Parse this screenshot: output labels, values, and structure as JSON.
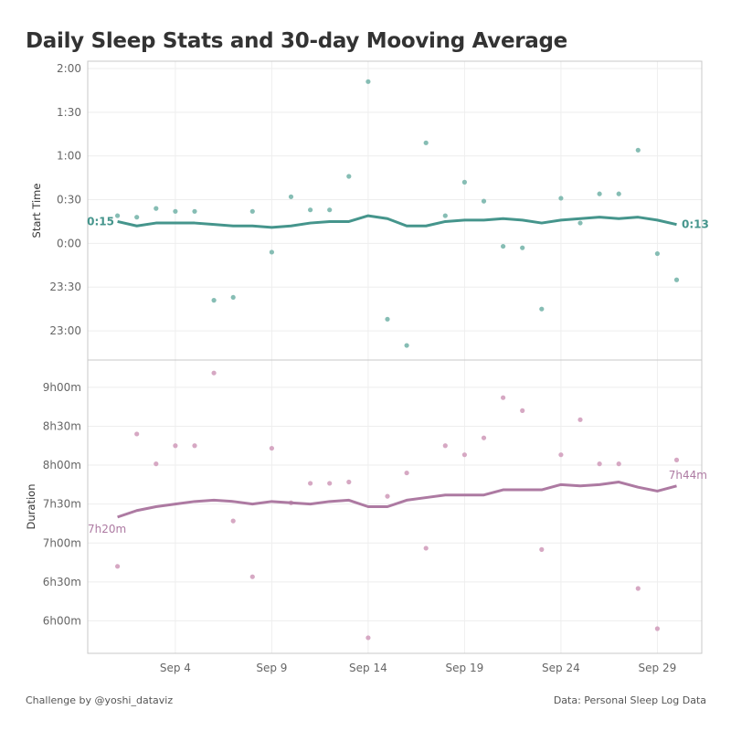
{
  "title": "Daily Sleep Stats and 30-day Mooving Average",
  "footer": {
    "credit": "Challenge by @yoshi_dataviz",
    "source": "Data: Personal Sleep Log Data"
  },
  "colors": {
    "start_line": "#45958c",
    "start_points": "#86bdb4",
    "duration_line": "#ad7aa2",
    "duration_points": "#d6a8c3",
    "grid": "#eeeeee"
  },
  "chart_data": [
    {
      "type": "line+scatter",
      "ylabel": "Start Time",
      "yticks": [
        "2:00",
        "1:30",
        "1:00",
        "0:30",
        "0:00",
        "23:30",
        "23:00"
      ],
      "ylim": [
        "22:40",
        "2:05"
      ],
      "grid": true,
      "x": [
        "Sep 1",
        "Sep 2",
        "Sep 3",
        "Sep 4",
        "Sep 5",
        "Sep 6",
        "Sep 7",
        "Sep 8",
        "Sep 9",
        "Sep 10",
        "Sep 11",
        "Sep 12",
        "Sep 13",
        "Sep 14",
        "Sep 15",
        "Sep 16",
        "Sep 17",
        "Sep 18",
        "Sep 19",
        "Sep 20",
        "Sep 21",
        "Sep 22",
        "Sep 23",
        "Sep 24",
        "Sep 25",
        "Sep 26",
        "Sep 27",
        "Sep 28",
        "Sep 29",
        "Sep 30"
      ],
      "daily": [
        "0:19",
        "0:18",
        "0:24",
        "0:22",
        "0:22",
        "23:21",
        "23:23",
        "0:22",
        "23:54",
        "0:32",
        "0:23",
        "0:23",
        "0:46",
        "1:51",
        "23:08",
        "22:50",
        "1:09",
        "0:19",
        "0:42",
        "0:29",
        "23:58",
        "23:57",
        "23:15",
        "0:31",
        "0:14",
        "0:34",
        "0:34",
        "1:04",
        "23:53",
        "23:35"
      ],
      "moving_average": [
        "0:15",
        "0:12",
        "0:14",
        "0:14",
        "0:14",
        "0:13",
        "0:12",
        "0:12",
        "0:11",
        "0:12",
        "0:14",
        "0:15",
        "0:15",
        "0:19",
        "0:17",
        "0:12",
        "0:12",
        "0:15",
        "0:16",
        "0:16",
        "0:17",
        "0:16",
        "0:14",
        "0:16",
        "0:17",
        "0:18",
        "0:17",
        "0:18",
        "0:16",
        "0:13"
      ],
      "labels": {
        "first": "0:15",
        "last": "0:13"
      }
    },
    {
      "type": "line+scatter",
      "ylabel": "Duration",
      "yticks": [
        "9h00m",
        "8h30m",
        "8h00m",
        "7h30m",
        "7h00m",
        "6h30m",
        "6h00m"
      ],
      "ylim": [
        "5h35m",
        "9h21m"
      ],
      "grid": true,
      "xticks": [
        "Sep 4",
        "Sep 9",
        "Sep 14",
        "Sep 19",
        "Sep 24",
        "Sep 29"
      ],
      "daily": [
        "6h42m",
        "8h24m",
        "8h01m",
        "8h15m",
        "8h15m",
        "9h11m",
        "7h17m",
        "6h34m",
        "8h13m",
        "7h31m",
        "7h46m",
        "7h46m",
        "7h47m",
        "5h47m",
        "7h36m",
        "7h54m",
        "6h56m",
        "8h15m",
        "8h08m",
        "8h21m",
        "8h52m",
        "8h42m",
        "6h55m",
        "8h08m",
        "8h35m",
        "8h01m",
        "8h01m",
        "6h25m",
        "5h54m",
        "8h04m"
      ],
      "moving_average": [
        "7h20m",
        "7h25m",
        "7h28m",
        "7h30m",
        "7h32m",
        "7h33m",
        "7h32m",
        "7h30m",
        "7h32m",
        "7h31m",
        "7h30m",
        "7h32m",
        "7h33m",
        "7h28m",
        "7h28m",
        "7h33m",
        "7h35m",
        "7h37m",
        "7h37m",
        "7h37m",
        "7h41m",
        "7h41m",
        "7h41m",
        "7h45m",
        "7h44m",
        "7h45m",
        "7h47m",
        "7h43m",
        "7h40m",
        "7h44m"
      ],
      "labels": {
        "first": "7h20m",
        "last": "7h44m"
      }
    }
  ]
}
